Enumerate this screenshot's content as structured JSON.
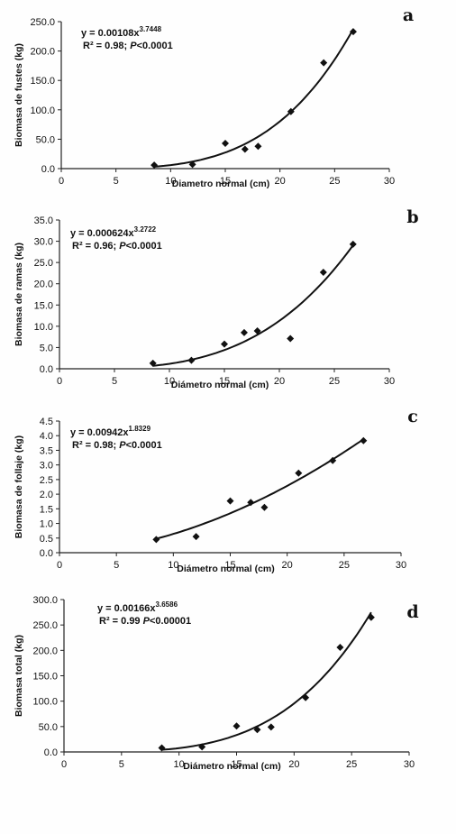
{
  "chart_data": [
    {
      "type": "scatter",
      "panel_letter": "a",
      "ylabel": "Biomasa de fustes (kg)",
      "xlabel": "Diametro normal (cm)",
      "xlim": [
        0,
        30
      ],
      "ylim": [
        0,
        250
      ],
      "x_ticks": [
        "0",
        "5",
        "10",
        "15",
        "20",
        "25",
        "30"
      ],
      "y_ticks": [
        "0.0",
        "50.0",
        "100.0",
        "150.0",
        "200.0",
        "250.0"
      ],
      "equation": "y = 0.00108x",
      "exponent": "3.7448",
      "r2_text": "R² = 0.98; ",
      "p_letter": "P",
      "p_text": "<0.0001",
      "fit": {
        "a": 0.00108,
        "b": 3.7448,
        "x_range": [
          8.5,
          26.7
        ]
      },
      "points": [
        {
          "x": 8.5,
          "y": 6
        },
        {
          "x": 12,
          "y": 7
        },
        {
          "x": 15,
          "y": 43
        },
        {
          "x": 16.8,
          "y": 33
        },
        {
          "x": 18,
          "y": 38
        },
        {
          "x": 21,
          "y": 97
        },
        {
          "x": 24,
          "y": 180
        },
        {
          "x": 26.7,
          "y": 233
        }
      ]
    },
    {
      "type": "scatter",
      "panel_letter": "b",
      "ylabel": "Biomasa de ramas (kg)",
      "xlabel": "Diámetro normal (cm)",
      "xlim": [
        0,
        30
      ],
      "ylim": [
        0,
        35
      ],
      "x_ticks": [
        "0",
        "5",
        "10",
        "15",
        "20",
        "25",
        "30"
      ],
      "y_ticks": [
        "0.0",
        "5.0",
        "10.0",
        "15.0",
        "20.0",
        "25.0",
        "30.0",
        "35.0"
      ],
      "equation": "y = 0.000624x",
      "exponent": "3.2722",
      "r2_text": "R² = 0.96; ",
      "p_letter": "P",
      "p_text": "<0.0001",
      "fit": {
        "a": 0.000624,
        "b": 3.2722,
        "x_range": [
          8.5,
          26.7
        ]
      },
      "points": [
        {
          "x": 8.5,
          "y": 1.3
        },
        {
          "x": 12,
          "y": 2.0
        },
        {
          "x": 15,
          "y": 5.8
        },
        {
          "x": 16.8,
          "y": 8.5
        },
        {
          "x": 18,
          "y": 8.9
        },
        {
          "x": 21,
          "y": 7.1
        },
        {
          "x": 24,
          "y": 22.7
        },
        {
          "x": 26.7,
          "y": 29.3
        }
      ]
    },
    {
      "type": "scatter",
      "panel_letter": "c",
      "ylabel": "Biomasa de follaje (kg)",
      "xlabel": "Diámetro normal (cm)",
      "xlim": [
        0,
        30
      ],
      "ylim": [
        0,
        4.5
      ],
      "x_ticks": [
        "0",
        "5",
        "10",
        "15",
        "20",
        "25",
        "30"
      ],
      "y_ticks": [
        "0.0",
        "0.5",
        "1.0",
        "1.5",
        "2.0",
        "2.5",
        "3.0",
        "3.5",
        "4.0",
        "4.5"
      ],
      "equation": "y = 0.00942x",
      "exponent": "1.8329",
      "r2_text": "R² = 0.98; ",
      "p_letter": "P",
      "p_text": "<0.0001",
      "fit": {
        "a": 0.00942,
        "b": 1.8329,
        "x_range": [
          8.5,
          26.7
        ]
      },
      "points": [
        {
          "x": 8.5,
          "y": 0.45
        },
        {
          "x": 12,
          "y": 0.55
        },
        {
          "x": 15,
          "y": 1.77
        },
        {
          "x": 16.8,
          "y": 1.72
        },
        {
          "x": 18,
          "y": 1.55
        },
        {
          "x": 21,
          "y": 2.72
        },
        {
          "x": 24,
          "y": 3.15
        },
        {
          "x": 26.7,
          "y": 3.83
        }
      ]
    },
    {
      "type": "scatter",
      "panel_letter": "d",
      "ylabel": "Biomasa total (kg)",
      "xlabel": "Diámetro normal (cm)",
      "xlim": [
        0,
        30
      ],
      "ylim": [
        0,
        300
      ],
      "x_ticks": [
        "0",
        "5",
        "10",
        "15",
        "20",
        "25",
        "30"
      ],
      "y_ticks": [
        "0.0",
        "50.0",
        "100.0",
        "150.0",
        "200.0",
        "250.0",
        "300.0"
      ],
      "equation": "y = 0.00166x",
      "exponent": "3.6586",
      "r2_text": "R² = 0.99 ",
      "p_letter": "P",
      "p_text": "<0.00001",
      "fit": {
        "a": 0.00166,
        "b": 3.6586,
        "x_range": [
          8.5,
          26.7
        ]
      },
      "points": [
        {
          "x": 8.5,
          "y": 8
        },
        {
          "x": 12,
          "y": 10
        },
        {
          "x": 15,
          "y": 51
        },
        {
          "x": 16.8,
          "y": 44
        },
        {
          "x": 18,
          "y": 49
        },
        {
          "x": 21,
          "y": 107
        },
        {
          "x": 24,
          "y": 206
        },
        {
          "x": 26.7,
          "y": 265
        }
      ]
    }
  ]
}
